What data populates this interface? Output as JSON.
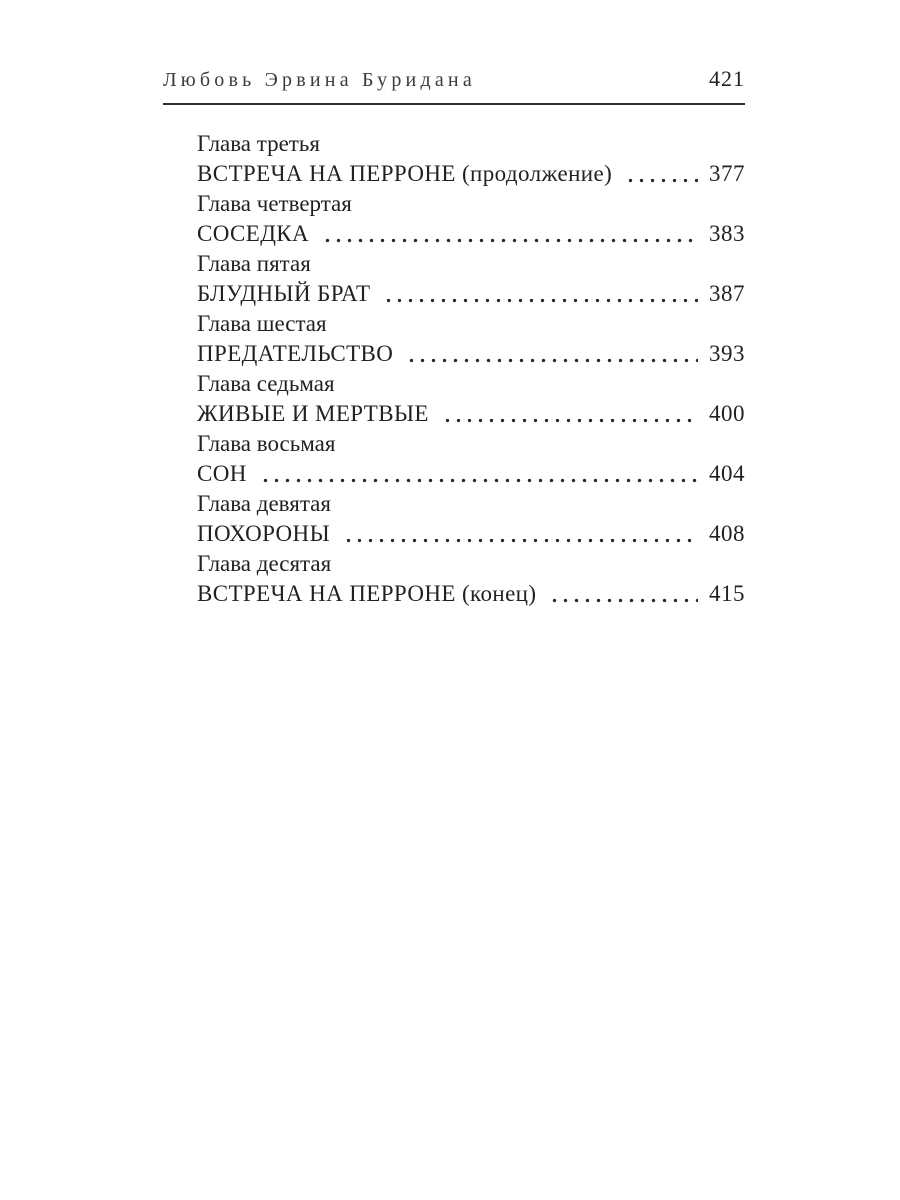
{
  "header": {
    "running_title": "Любовь Эрвина Буридана",
    "page_number": "421"
  },
  "toc": {
    "entries": [
      {
        "chapter": "Глава третья",
        "title": "ВСТРЕЧА НА ПЕРРОНЕ (продолжение)",
        "page": "377"
      },
      {
        "chapter": "Глава четвертая",
        "title": "СОСЕДКА",
        "page": "383"
      },
      {
        "chapter": "Глава пятая",
        "title": "БЛУДНЫЙ БРАТ",
        "page": "387"
      },
      {
        "chapter": "Глава шестая",
        "title": "ПРЕДАТЕЛЬСТВО",
        "page": "393"
      },
      {
        "chapter": "Глава седьмая",
        "title": "ЖИВЫЕ И МЕРТВЫЕ",
        "page": "400"
      },
      {
        "chapter": "Глава восьмая",
        "title": "СОН",
        "page": "404"
      },
      {
        "chapter": "Глава девятая",
        "title": "ПОХОРОНЫ",
        "page": "408"
      },
      {
        "chapter": "Глава десятая",
        "title": "ВСТРЕЧА НА ПЕРРОНЕ (конец)",
        "page": "415"
      }
    ]
  },
  "colors": {
    "background": "#ffffff",
    "text": "#212121",
    "header_text": "#3b3b3b",
    "rule": "#2e2e2e",
    "leader_dots": "#2a2a2a"
  }
}
